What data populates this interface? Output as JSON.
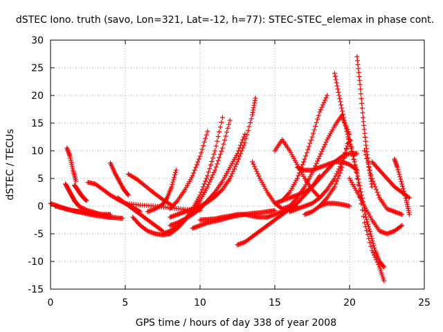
{
  "chart_data": {
    "type": "scatter",
    "title": "dSTEC Iono. truth (savo, Lon=321, Lat=-12, h=77): STEC-STEC_elemax in phase cont.",
    "xlabel": "GPS time / hours of day 338 of year 2008",
    "ylabel": "dSTEC  / TECUs",
    "xlim": [
      0,
      25
    ],
    "ylim": [
      -15,
      30
    ],
    "xticks": [
      0,
      5,
      10,
      15,
      20,
      25
    ],
    "yticks": [
      -15,
      -10,
      -5,
      0,
      5,
      10,
      15,
      20,
      25,
      30
    ],
    "grid": true,
    "marker": "+",
    "color": "#ff0000",
    "series": [
      {
        "x": [
          0.0,
          0.5,
          1.0,
          1.5,
          2.0,
          2.5,
          3.0,
          3.5,
          4.0
        ],
        "y": [
          0.5,
          0.0,
          -0.5,
          -0.8,
          -1.0,
          -1.2,
          -1.4,
          -1.5,
          -1.5
        ]
      },
      {
        "x": [
          0.3,
          0.8,
          1.3,
          1.8,
          2.3,
          2.8,
          3.3,
          3.8,
          4.3,
          4.8
        ],
        "y": [
          0.0,
          -0.3,
          -0.7,
          -1.0,
          -1.3,
          -1.6,
          -1.8,
          -2.0,
          -2.1,
          -2.2
        ]
      },
      {
        "x": [
          1.0,
          1.2,
          1.4,
          1.6,
          1.8,
          2.0,
          2.5,
          3.0,
          3.5,
          4.0
        ],
        "y": [
          4.0,
          3.0,
          2.0,
          1.0,
          0.3,
          -0.2,
          -0.8,
          -1.2,
          -1.6,
          -2.0
        ]
      },
      {
        "x": [
          1.1,
          1.3,
          1.5,
          1.7
        ],
        "y": [
          10.5,
          9.0,
          6.5,
          4.5
        ]
      },
      {
        "x": [
          1.6,
          1.8,
          2.0,
          2.2,
          2.4
        ],
        "y": [
          3.8,
          3.0,
          2.2,
          1.5,
          1.0
        ]
      },
      {
        "x": [
          2.5,
          3.0,
          3.5,
          4.0,
          4.5,
          5.0,
          5.5,
          6.0
        ],
        "y": [
          4.3,
          4.0,
          3.0,
          2.0,
          1.2,
          0.5,
          -0.2,
          -1.0
        ]
      },
      {
        "x": [
          4.0,
          4.3,
          4.6,
          4.9,
          5.2
        ],
        "y": [
          7.8,
          6.0,
          4.5,
          3.0,
          2.0
        ]
      },
      {
        "x": [
          4.5,
          5.0,
          5.5,
          6.0,
          6.5,
          7.0,
          7.5
        ],
        "y": [
          1.5,
          0.5,
          -0.5,
          -1.5,
          -2.5,
          -3.5,
          -4.5
        ]
      },
      {
        "x": [
          5.2,
          5.8,
          6.4,
          7.0,
          7.6,
          8.2
        ],
        "y": [
          5.8,
          4.8,
          3.5,
          2.2,
          1.0,
          0.0
        ]
      },
      {
        "x": [
          5.0,
          6.0,
          7.0,
          8.0,
          9.0,
          10.0
        ],
        "y": [
          0.5,
          0.2,
          0.0,
          -0.3,
          -0.6,
          -0.8
        ]
      },
      {
        "x": [
          5.5,
          6.0,
          6.5,
          7.0,
          7.5,
          8.0,
          8.5,
          9.0,
          9.5,
          10.0,
          10.5,
          11.0,
          11.5
        ],
        "y": [
          -2.0,
          -3.5,
          -4.5,
          -5.0,
          -5.2,
          -5.0,
          -4.0,
          -2.5,
          -0.5,
          2.0,
          5.5,
          10.0,
          16.0
        ]
      },
      {
        "x": [
          7.5,
          8.0,
          8.5,
          9.0,
          9.5,
          10.0,
          10.5,
          11.0,
          11.5,
          12.0
        ],
        "y": [
          -5.0,
          -4.5,
          -3.5,
          -2.5,
          -1.0,
          1.0,
          3.5,
          6.5,
          10.5,
          15.5
        ]
      },
      {
        "x": [
          8.0,
          8.5,
          9.0,
          9.5,
          10.0,
          10.5,
          11.0,
          11.5,
          12.0,
          12.5,
          13.0
        ],
        "y": [
          -3.5,
          -3.0,
          -2.3,
          -1.5,
          -0.5,
          1.0,
          2.5,
          4.5,
          7.0,
          9.5,
          13.0
        ]
      },
      {
        "x": [
          8.0,
          8.5,
          9.0,
          9.5,
          10.0,
          10.5,
          11.0,
          11.5,
          12.0,
          12.5,
          13.0,
          13.5,
          13.7
        ],
        "y": [
          -2.0,
          -1.5,
          -1.0,
          -0.5,
          0.0,
          0.7,
          1.7,
          3.0,
          5.0,
          8.0,
          11.5,
          16.5,
          19.5
        ]
      },
      {
        "x": [
          8.0,
          8.5,
          9.0,
          9.5,
          10.0,
          10.5
        ],
        "y": [
          -0.5,
          1.0,
          3.0,
          5.5,
          9.0,
          13.5
        ]
      },
      {
        "x": [
          6.5,
          7.0,
          7.5,
          7.8,
          8.1,
          8.4
        ],
        "y": [
          -1.0,
          -0.5,
          0.3,
          1.5,
          3.5,
          6.5
        ]
      },
      {
        "x": [
          9.5,
          10.0,
          10.5,
          11.0,
          11.5,
          12.0,
          12.5,
          13.0,
          13.5,
          14.0,
          14.5,
          15.0
        ],
        "y": [
          -4.0,
          -3.5,
          -3.0,
          -2.7,
          -2.4,
          -2.0,
          -1.7,
          -1.5,
          -1.3,
          -1.2,
          -1.0,
          -0.8
        ]
      },
      {
        "x": [
          10.0,
          10.5,
          11.0,
          11.5,
          12.0,
          12.5,
          13.0,
          13.5,
          14.0,
          14.5,
          15.0,
          15.5,
          16.0,
          16.5
        ],
        "y": [
          -2.5,
          -2.4,
          -2.3,
          -2.0,
          -1.8,
          -1.5,
          -1.5,
          -1.8,
          -2.0,
          -2.0,
          -1.5,
          -1.0,
          -0.5,
          0.0
        ]
      },
      {
        "x": [
          12.5,
          13.0,
          13.5,
          14.0,
          14.5,
          15.0,
          15.5,
          16.0,
          16.5,
          17.0,
          17.5,
          18.0
        ],
        "y": [
          -7.0,
          -6.5,
          -5.5,
          -4.5,
          -3.5,
          -2.5,
          -1.5,
          -0.5,
          0.5,
          2.0,
          3.5,
          5.5
        ]
      },
      {
        "x": [
          13.5,
          14.0,
          14.5,
          15.0,
          15.5,
          16.0,
          16.5,
          17.0,
          17.5,
          18.0,
          18.5,
          19.0,
          19.5
        ],
        "y": [
          8.0,
          5.0,
          2.5,
          0.5,
          -0.5,
          0.0,
          1.5,
          3.5,
          6.0,
          9.0,
          12.0,
          14.5,
          16.5
        ]
      },
      {
        "x": [
          15.0,
          15.5,
          16.0,
          16.5,
          17.0,
          17.5,
          18.0
        ],
        "y": [
          10.0,
          12.0,
          10.0,
          7.5,
          5.0,
          3.0,
          1.5
        ]
      },
      {
        "x": [
          15.5,
          16.0,
          16.5,
          17.0,
          17.5,
          18.0,
          18.5
        ],
        "y": [
          1.0,
          2.5,
          5.0,
          8.5,
          12.5,
          17.0,
          20.0
        ]
      },
      {
        "x": [
          15.0,
          15.5,
          16.0,
          16.5,
          17.0,
          17.5,
          18.0,
          18.5,
          19.0,
          19.5,
          20.0,
          20.5
        ],
        "y": [
          0.5,
          1.0,
          1.5,
          2.0,
          2.5,
          3.5,
          5.0,
          6.5,
          8.0,
          9.0,
          9.5,
          9.5
        ]
      },
      {
        "x": [
          16.0,
          16.5,
          17.0,
          17.5,
          18.0,
          18.5,
          19.0,
          19.5,
          20.0
        ],
        "y": [
          -1.0,
          -0.5,
          0.0,
          0.5,
          1.5,
          3.0,
          5.0,
          8.0,
          12.0
        ]
      },
      {
        "x": [
          16.5,
          17.0,
          17.5,
          18.0,
          18.5,
          19.0,
          19.5,
          20.0,
          20.5
        ],
        "y": [
          7.0,
          6.5,
          6.5,
          7.0,
          7.5,
          8.0,
          8.0,
          7.5,
          6.5
        ]
      },
      {
        "x": [
          17.0,
          17.5,
          18.0,
          18.5,
          19.0,
          19.5,
          20.0
        ],
        "y": [
          -1.5,
          -1.0,
          0.0,
          1.5,
          3.5,
          7.0,
          13.0
        ]
      },
      {
        "x": [
          18.0,
          18.5,
          19.0,
          19.5,
          20.0
        ],
        "y": [
          0.0,
          0.5,
          0.5,
          0.3,
          0.0
        ]
      },
      {
        "x": [
          19.0,
          19.3,
          19.6,
          19.9,
          20.2,
          20.5,
          20.8,
          21.1,
          21.4,
          21.7,
          22.0,
          22.3
        ],
        "y": [
          24.0,
          20.0,
          16.0,
          12.5,
          9.5,
          6.0,
          2.0,
          -2.0,
          -5.0,
          -8.0,
          -10.0,
          -11.0
        ]
      },
      {
        "x": [
          19.5,
          20.0,
          20.5,
          21.0,
          21.5,
          22.0,
          22.3
        ],
        "y": [
          16.0,
          13.0,
          5.0,
          -3.0,
          -8.0,
          -11.0,
          -13.5
        ]
      },
      {
        "x": [
          20.5,
          20.7,
          20.9,
          21.1,
          21.3,
          21.5
        ],
        "y": [
          27.0,
          22.0,
          16.0,
          11.0,
          7.0,
          3.5
        ]
      },
      {
        "x": [
          20.0,
          20.5,
          21.0,
          21.5,
          22.0,
          22.5,
          23.0,
          23.5
        ],
        "y": [
          5.0,
          2.5,
          0.0,
          -2.5,
          -4.5,
          -5.0,
          -4.5,
          -3.5
        ]
      },
      {
        "x": [
          21.0,
          21.5,
          22.0,
          22.5,
          23.0,
          23.5
        ],
        "y": [
          10.0,
          5.0,
          1.5,
          -0.5,
          -1.0,
          -1.5
        ]
      },
      {
        "x": [
          21.5,
          22.0,
          22.5,
          23.0,
          23.5,
          24.0
        ],
        "y": [
          8.0,
          6.5,
          5.0,
          3.5,
          2.5,
          1.5
        ]
      },
      {
        "x": [
          23.0,
          23.2,
          23.5,
          23.8,
          24.0
        ],
        "y": [
          8.5,
          7.0,
          4.0,
          1.0,
          -1.5
        ]
      }
    ]
  }
}
